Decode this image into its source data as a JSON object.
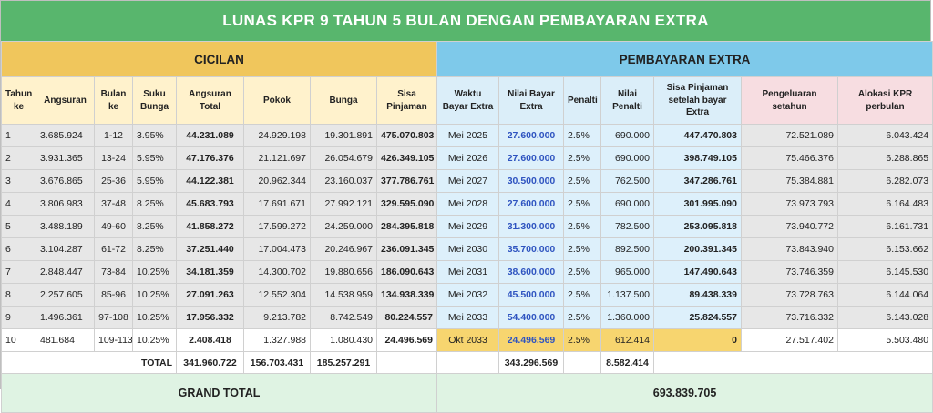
{
  "title": "LUNAS KPR 9 TAHUN 5 BULAN DENGAN PEMBAYARAN EXTRA",
  "sections": {
    "cicilan": "CICILAN",
    "extra": "PEMBAYARAN EXTRA"
  },
  "headers": {
    "tahun": "Tahun ke",
    "angsuran": "Angsuran",
    "bulan": "Bulan ke",
    "suku": "Suku Bunga",
    "angsuran_total": "Angsuran Total",
    "pokok": "Pokok",
    "bunga": "Bunga",
    "sisa": "Sisa Pinjaman",
    "waktu": "Waktu Bayar Extra",
    "nilai_bayar": "Nilai Bayar Extra",
    "penalti": "Penalti",
    "nilai_penalti": "Nilai Penalti",
    "sisa_setelah": "Sisa Pinjaman setelah bayar Extra",
    "pengeluaran": "Pengeluaran setahun",
    "alokasi": "Alokasi KPR perbulan"
  },
  "rows": [
    {
      "tahun": "1",
      "angsuran": "3.685.924",
      "bulan": "1-12",
      "suku": "3.95%",
      "angsuran_total": "44.231.089",
      "pokok": "24.929.198",
      "bunga": "19.301.891",
      "sisa": "475.070.803",
      "waktu": "Mei 2025",
      "nilai_bayar": "27.600.000",
      "penalti": "2.5%",
      "nilai_penalti": "690.000",
      "sisa_setelah": "447.470.803",
      "pengeluaran": "72.521.089",
      "alokasi": "6.043.424"
    },
    {
      "tahun": "2",
      "angsuran": "3.931.365",
      "bulan": "13-24",
      "suku": "5.95%",
      "angsuran_total": "47.176.376",
      "pokok": "21.121.697",
      "bunga": "26.054.679",
      "sisa": "426.349.105",
      "waktu": "Mei 2026",
      "nilai_bayar": "27.600.000",
      "penalti": "2.5%",
      "nilai_penalti": "690.000",
      "sisa_setelah": "398.749.105",
      "pengeluaran": "75.466.376",
      "alokasi": "6.288.865"
    },
    {
      "tahun": "3",
      "angsuran": "3.676.865",
      "bulan": "25-36",
      "suku": "5.95%",
      "angsuran_total": "44.122.381",
      "pokok": "20.962.344",
      "bunga": "23.160.037",
      "sisa": "377.786.761",
      "waktu": "Mei 2027",
      "nilai_bayar": "30.500.000",
      "penalti": "2.5%",
      "nilai_penalti": "762.500",
      "sisa_setelah": "347.286.761",
      "pengeluaran": "75.384.881",
      "alokasi": "6.282.073"
    },
    {
      "tahun": "4",
      "angsuran": "3.806.983",
      "bulan": "37-48",
      "suku": "8.25%",
      "angsuran_total": "45.683.793",
      "pokok": "17.691.671",
      "bunga": "27.992.121",
      "sisa": "329.595.090",
      "waktu": "Mei 2028",
      "nilai_bayar": "27.600.000",
      "penalti": "2.5%",
      "nilai_penalti": "690.000",
      "sisa_setelah": "301.995.090",
      "pengeluaran": "73.973.793",
      "alokasi": "6.164.483"
    },
    {
      "tahun": "5",
      "angsuran": "3.488.189",
      "bulan": "49-60",
      "suku": "8.25%",
      "angsuran_total": "41.858.272",
      "pokok": "17.599.272",
      "bunga": "24.259.000",
      "sisa": "284.395.818",
      "waktu": "Mei 2029",
      "nilai_bayar": "31.300.000",
      "penalti": "2.5%",
      "nilai_penalti": "782.500",
      "sisa_setelah": "253.095.818",
      "pengeluaran": "73.940.772",
      "alokasi": "6.161.731"
    },
    {
      "tahun": "6",
      "angsuran": "3.104.287",
      "bulan": "61-72",
      "suku": "8.25%",
      "angsuran_total": "37.251.440",
      "pokok": "17.004.473",
      "bunga": "20.246.967",
      "sisa": "236.091.345",
      "waktu": "Mei 2030",
      "nilai_bayar": "35.700.000",
      "penalti": "2.5%",
      "nilai_penalti": "892.500",
      "sisa_setelah": "200.391.345",
      "pengeluaran": "73.843.940",
      "alokasi": "6.153.662"
    },
    {
      "tahun": "7",
      "angsuran": "2.848.447",
      "bulan": "73-84",
      "suku": "10.25%",
      "angsuran_total": "34.181.359",
      "pokok": "14.300.702",
      "bunga": "19.880.656",
      "sisa": "186.090.643",
      "waktu": "Mei 2031",
      "nilai_bayar": "38.600.000",
      "penalti": "2.5%",
      "nilai_penalti": "965.000",
      "sisa_setelah": "147.490.643",
      "pengeluaran": "73.746.359",
      "alokasi": "6.145.530"
    },
    {
      "tahun": "8",
      "angsuran": "2.257.605",
      "bulan": "85-96",
      "suku": "10.25%",
      "angsuran_total": "27.091.263",
      "pokok": "12.552.304",
      "bunga": "14.538.959",
      "sisa": "134.938.339",
      "waktu": "Mei 2032",
      "nilai_bayar": "45.500.000",
      "penalti": "2.5%",
      "nilai_penalti": "1.137.500",
      "sisa_setelah": "89.438.339",
      "pengeluaran": "73.728.763",
      "alokasi": "6.144.064"
    },
    {
      "tahun": "9",
      "angsuran": "1.496.361",
      "bulan": "97-108",
      "suku": "10.25%",
      "angsuran_total": "17.956.332",
      "pokok": "9.213.782",
      "bunga": "8.742.549",
      "sisa": "80.224.557",
      "waktu": "Mei 2033",
      "nilai_bayar": "54.400.000",
      "penalti": "2.5%",
      "nilai_penalti": "1.360.000",
      "sisa_setelah": "25.824.557",
      "pengeluaran": "73.716.332",
      "alokasi": "6.143.028"
    },
    {
      "tahun": "10",
      "angsuran": "481.684",
      "bulan": "109-113",
      "suku": "10.25%",
      "angsuran_total": "2.408.418",
      "pokok": "1.327.988",
      "bunga": "1.080.430",
      "sisa": "24.496.569",
      "waktu": "Okt 2033",
      "nilai_bayar": "24.496.569",
      "penalti": "2.5%",
      "nilai_penalti": "612.414",
      "sisa_setelah": "0",
      "pengeluaran": "27.517.402",
      "alokasi": "5.503.480"
    }
  ],
  "totals": {
    "label": "TOTAL",
    "angsuran_total": "341.960.722",
    "pokok": "156.703.431",
    "bunga": "185.257.291",
    "nilai_bayar": "343.296.569",
    "nilai_penalti": "8.582.414"
  },
  "grand_total": {
    "label": "GRAND TOTAL",
    "value": "693.839.705"
  },
  "colors": {
    "title_bg": "#58b66d",
    "cicilan_bg": "#f0c65c",
    "extra_bg": "#7ec9ea",
    "extra_value_text": "#2f54c0",
    "grand_total_bg": "#dff3e3"
  }
}
